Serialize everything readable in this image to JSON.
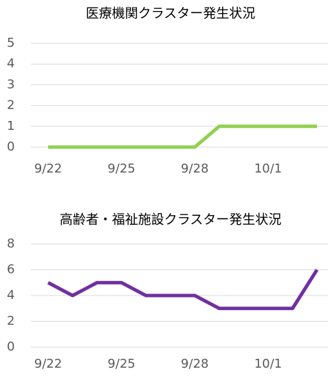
{
  "chart_data": [
    {
      "type": "line",
      "title": "医療機関クラスター発生状況",
      "categories": [
        "9/22",
        null,
        null,
        "9/25",
        null,
        null,
        "9/28",
        null,
        null,
        "10/1",
        null,
        null
      ],
      "series": [
        {
          "color": "#92d050",
          "values": [
            0,
            0,
            0,
            0,
            0,
            0,
            0,
            1,
            1,
            1,
            1,
            1
          ]
        }
      ],
      "ylim": [
        0,
        5
      ],
      "yticks": [
        0,
        1,
        2,
        3,
        4,
        5
      ],
      "grid": true
    },
    {
      "type": "line",
      "title": "高齢者・福祉施設クラスター発生状況",
      "categories": [
        "9/22",
        null,
        null,
        "9/25",
        null,
        null,
        "9/28",
        null,
        null,
        "10/1",
        null,
        null
      ],
      "series": [
        {
          "color": "#7030a0",
          "values": [
            5,
            4,
            5,
            5,
            4,
            4,
            4,
            3,
            3,
            3,
            3,
            6
          ]
        }
      ],
      "ylim": [
        0,
        8
      ],
      "yticks": [
        0,
        2,
        4,
        6,
        8
      ],
      "grid": true
    }
  ]
}
